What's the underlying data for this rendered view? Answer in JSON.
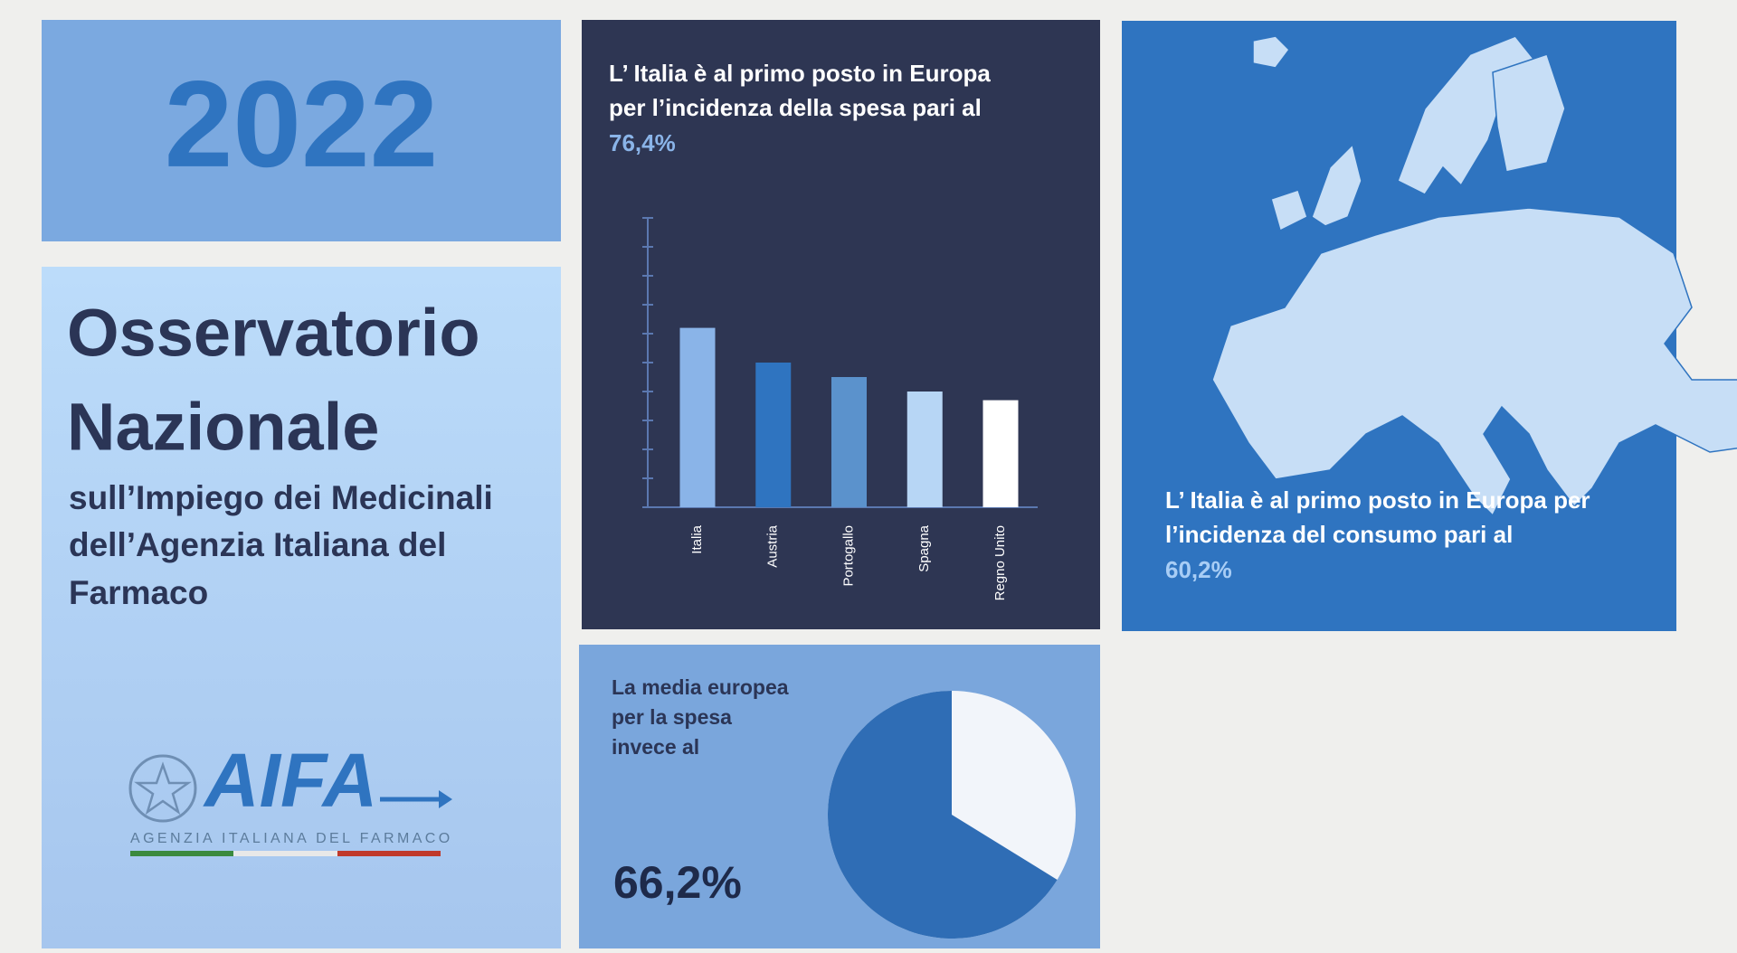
{
  "header": {
    "year": "2022"
  },
  "intro": {
    "title_lines": [
      "Osservatorio",
      "Nazionale"
    ],
    "subtitle_lines": [
      "sull’Impiego dei Medicinali",
      "dell’Agenzia Italiana del",
      "Farmaco"
    ]
  },
  "logo": {
    "name": "AIFA",
    "caption": "AGENZIA ITALIANA DEL FARMACO"
  },
  "map_panel": {
    "lines": [
      "L’ Italia è al primo posto in Europa per",
      "l’incidenza del consumo pari al"
    ],
    "highlight": "60,2%"
  },
  "chart_data": [
    {
      "type": "bar",
      "title_lines": [
        "L’ Italia è  al primo posto in Europa",
        "per l’incidenza della spesa pari al"
      ],
      "highlight": "76,4%",
      "categories": [
        "Italia",
        "Austria",
        "Portogallo",
        "Spagna",
        "Regno Unito"
      ],
      "values": [
        6.2,
        5.0,
        4.5,
        4.0,
        3.7
      ],
      "colors": [
        "#8ab4e8",
        "#2f74c0",
        "#5b92cc",
        "#b7d6f5",
        "#ffffff"
      ],
      "ylim": [
        0,
        10
      ],
      "yticks": [
        0,
        1,
        2,
        3,
        4,
        5,
        6,
        7,
        8,
        9,
        10
      ]
    },
    {
      "type": "pie",
      "text_lines": [
        "La media europea",
        "per la spesa",
        "invece al"
      ],
      "values": [
        66.2
      ],
      "value_labels": [
        "66,2%"
      ],
      "colors": [
        "#2f6db5"
      ]
    }
  ]
}
